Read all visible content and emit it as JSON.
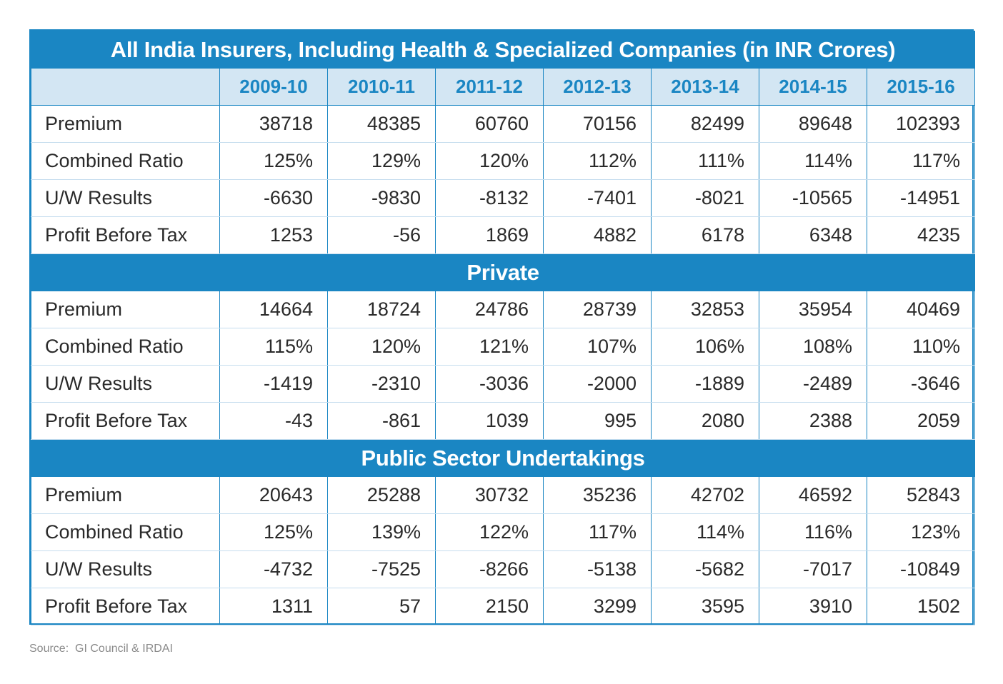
{
  "chart_data": {
    "type": "table",
    "title": "All India Insurers, Including Health & Specialized Companies (in INR Crores)",
    "columns": [
      "2009-10",
      "2010-11",
      "2011-12",
      "2012-13",
      "2013-14",
      "2014-15",
      "2015-16"
    ],
    "sections": [
      {
        "name": "",
        "rows": [
          {
            "label": "Premium",
            "values": [
              "38718",
              "48385",
              "60760",
              "70156",
              "82499",
              "89648",
              "102393"
            ]
          },
          {
            "label": "Combined Ratio",
            "values": [
              "125%",
              "129%",
              "120%",
              "112%",
              "111%",
              "114%",
              "117%"
            ]
          },
          {
            "label": "U/W Results",
            "values": [
              "-6630",
              "-9830",
              "-8132",
              "-7401",
              "-8021",
              "-10565",
              "-14951"
            ]
          },
          {
            "label": "Profit Before Tax",
            "values": [
              "1253",
              "-56",
              "1869",
              "4882",
              "6178",
              "6348",
              "4235"
            ]
          }
        ]
      },
      {
        "name": "Private",
        "rows": [
          {
            "label": "Premium",
            "values": [
              "14664",
              "18724",
              "24786",
              "28739",
              "32853",
              "35954",
              "40469"
            ]
          },
          {
            "label": "Combined Ratio",
            "values": [
              "115%",
              "120%",
              "121%",
              "107%",
              "106%",
              "108%",
              "110%"
            ]
          },
          {
            "label": "U/W Results",
            "values": [
              "-1419",
              "-2310",
              "-3036",
              "-2000",
              "-1889",
              "-2489",
              "-3646"
            ]
          },
          {
            "label": "Profit Before Tax",
            "values": [
              "-43",
              "-861",
              "1039",
              "995",
              "2080",
              "2388",
              "2059"
            ]
          }
        ]
      },
      {
        "name": "Public Sector Undertakings",
        "rows": [
          {
            "label": "Premium",
            "values": [
              "20643",
              "25288",
              "30732",
              "35236",
              "42702",
              "46592",
              "52843"
            ]
          },
          {
            "label": "Combined Ratio",
            "values": [
              "125%",
              "139%",
              "122%",
              "117%",
              "114%",
              "116%",
              "123%"
            ]
          },
          {
            "label": "U/W Results",
            "values": [
              "-4732",
              "-7525",
              "-8266",
              "-5138",
              "-5682",
              "-7017",
              "-10849"
            ]
          },
          {
            "label": "Profit Before Tax",
            "values": [
              "1311",
              "57",
              "2150",
              "3299",
              "3595",
              "3910",
              "1502"
            ]
          }
        ]
      }
    ]
  },
  "source": "Source:  GI Council & IRDAI",
  "colors": {
    "accent": "#1a86c3",
    "header_fill": "#d3e6f3",
    "text": "#2a2a2a",
    "source_text": "#8a8a8a"
  }
}
